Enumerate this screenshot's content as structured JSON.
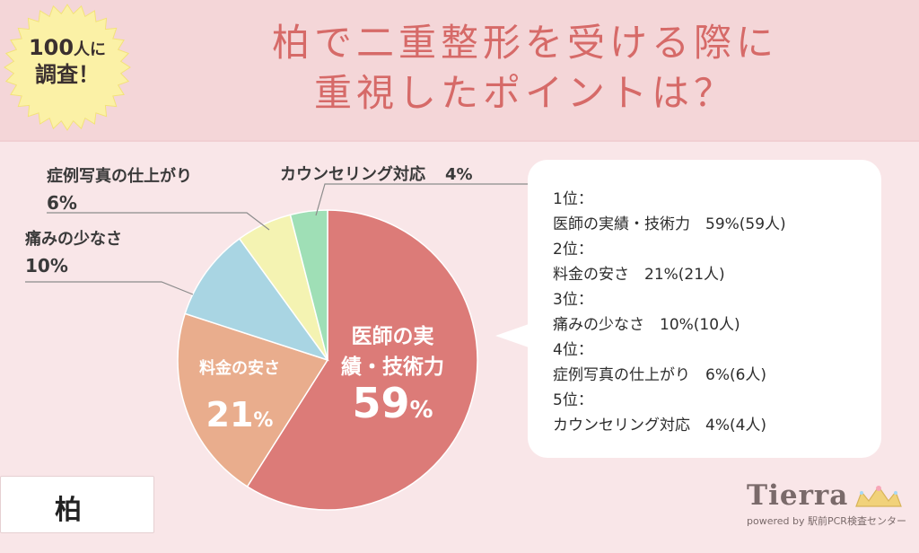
{
  "badge": {
    "line1_number": "100",
    "line1_suffix": "人に",
    "line2": "調査！"
  },
  "title": {
    "line1": "柏で二重整形を受ける際に",
    "line2": "重視したポイントは？"
  },
  "chart_data": {
    "type": "pie",
    "title": "",
    "slices": [
      {
        "label": "医師の実績・技術力",
        "value": 59,
        "display": "59%",
        "color": "#dc7b78"
      },
      {
        "label": "料金の安さ",
        "value": 21,
        "display": "21%",
        "color": "#e9ad8d"
      },
      {
        "label": "痛みの少なさ",
        "value": 10,
        "display": "10%",
        "color": "#a9d5e3"
      },
      {
        "label": "症例写真の仕上がり",
        "value": 6,
        "display": "6%",
        "color": "#f4f3b2"
      },
      {
        "label": "カウンセリング対応",
        "value": 4,
        "display": "4%",
        "color": "#9fdfb6"
      }
    ],
    "inside_labels": {
      "s0_line1": "医師の実",
      "s0_line2": "績・技術力",
      "s0_pct": "59",
      "s0_unit": "%",
      "s1_name": "料金の安さ",
      "s1_pct": "21",
      "s1_unit": "%"
    },
    "outside_labels": {
      "s4_name": "カウンセリング対応",
      "s4_pct": "4%",
      "s3_name": "症例写真の仕上がり",
      "s3_pct": "6%",
      "s2_name": "痛みの少なさ",
      "s2_pct": "10%"
    }
  },
  "ranking": [
    {
      "rank": "1位：",
      "detail": "医師の実績・技術力　59%(59人)"
    },
    {
      "rank": "2位：",
      "detail": "料金の安さ　21%(21人)"
    },
    {
      "rank": "3位：",
      "detail": "痛みの少なさ　10%(10人)"
    },
    {
      "rank": "4位：",
      "detail": "症例写真の仕上がり　6%(6人)"
    },
    {
      "rank": "5位：",
      "detail": "カウンセリング対応　4%(4人)"
    }
  ],
  "city": "柏",
  "logo": {
    "name": "Tierra",
    "sub": "powered by 駅前PCR検査センター",
    "icon": "tiara-icon"
  }
}
